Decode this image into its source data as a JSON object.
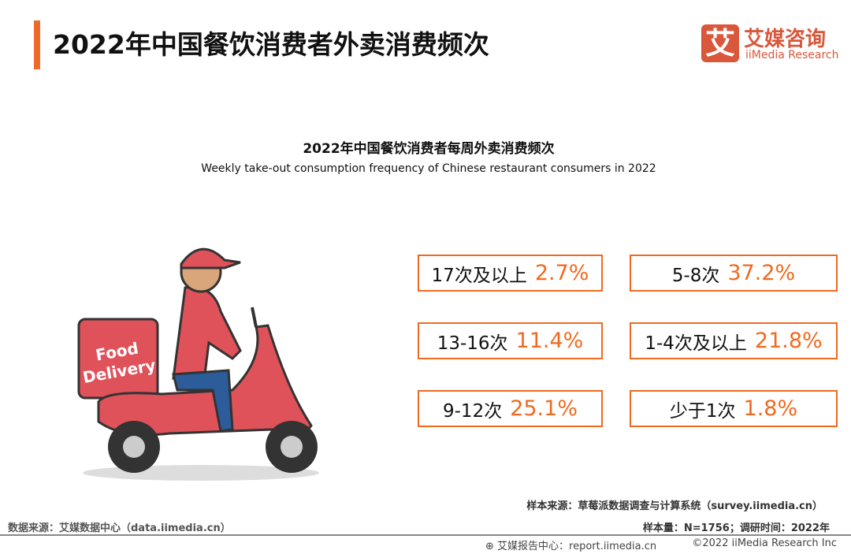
{
  "header": {
    "title": "2022年中国餐饮消费者外卖消费频次"
  },
  "logo": {
    "mark": "艾",
    "name_cn": "艾媒咨询",
    "name_en": "iiMedia Research",
    "color": "#d9573a"
  },
  "chart": {
    "title_cn": "2022年中国餐饮消费者每周外卖消费频次",
    "title_en": "Weekly take-out consumption frequency of Chinese restaurant consumers in 2022"
  },
  "illustration": {
    "box_text": "Food Delivery"
  },
  "items": [
    {
      "label": "17次及以上",
      "value": "2.7%"
    },
    {
      "label": "5-8次",
      "value": "37.2%"
    },
    {
      "label": "13-16次",
      "value": "11.4%"
    },
    {
      "label": "1-4次及以上",
      "value": "21.8%"
    },
    {
      "label": "9-12次",
      "value": "25.1%"
    },
    {
      "label": "少于1次",
      "value": "1.8%"
    }
  ],
  "accent": "#ef6a1f",
  "footer": {
    "sample_source": "样本来源：草莓派数据调查与计算系统（survey.iimedia.cn）",
    "data_source": "数据来源：艾媒数据中心（data.iimedia.cn）",
    "sample_size": "样本量：N=1756；调研时间：2022年",
    "report": "艾媒报告中心：report.iimedia.cn",
    "copyright": "©2022  iiMedia Research  Inc"
  }
}
